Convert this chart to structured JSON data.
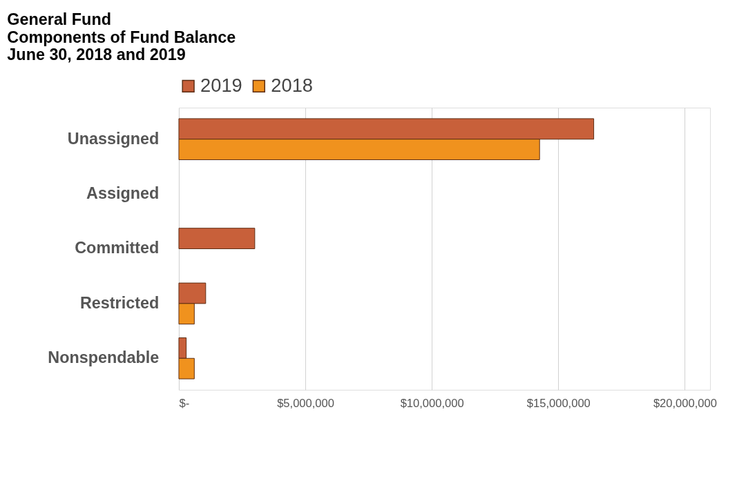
{
  "chart_data": {
    "type": "bar",
    "orientation": "horizontal",
    "title": [
      "General Fund",
      "Components of Fund Balance",
      "June 30, 2018 and 2019"
    ],
    "categories": [
      "Unassigned",
      "Assigned",
      "Committed",
      "Restricted",
      "Nonspendable"
    ],
    "series": [
      {
        "name": "2019",
        "color": "#c8603a",
        "values": [
          16400000,
          null,
          3000000,
          1060000,
          290000
        ]
      },
      {
        "name": "2018",
        "color": "#f0921e",
        "values": [
          14260000,
          null,
          null,
          610000,
          610000
        ]
      }
    ],
    "xlim": [
      0,
      21000000
    ],
    "xticks": [
      {
        "value": 0,
        "label": "$-"
      },
      {
        "value": 5000000,
        "label": "$5,000,000"
      },
      {
        "value": 10000000,
        "label": "$10,000,000"
      },
      {
        "value": 15000000,
        "label": "$15,000,000"
      },
      {
        "value": 20000000,
        "label": "$20,000,000"
      }
    ],
    "grid": "x",
    "legend": "top"
  }
}
